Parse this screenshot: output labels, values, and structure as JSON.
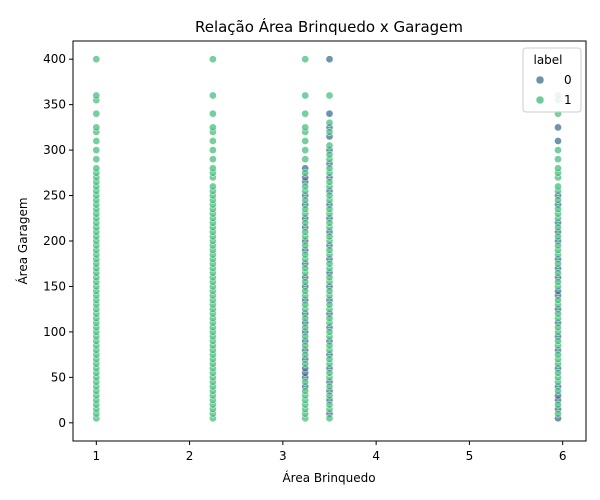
{
  "chart_data": {
    "type": "scatter",
    "title": "Relação Área Brinquedo x Garagem",
    "xlabel": "Área Brinquedo",
    "ylabel": "Área Garagem",
    "xlim": [
      0.75,
      6.25
    ],
    "ylim": [
      -20,
      420
    ],
    "xticks": [
      1,
      2,
      3,
      4,
      5,
      6
    ],
    "yticks": [
      0,
      50,
      100,
      150,
      200,
      250,
      300,
      350,
      400
    ],
    "grid": false,
    "legend": {
      "title": "label",
      "placement": "top-right",
      "entries": [
        {
          "label": "0",
          "color": "#3b6f8a"
        },
        {
          "label": "1",
          "color": "#3dbb78"
        }
      ]
    },
    "series": [
      {
        "name": "0",
        "color": "#33678a",
        "points": [
          [
            3.24,
            40
          ],
          [
            3.24,
            50
          ],
          [
            3.24,
            55
          ],
          [
            3.24,
            60
          ],
          [
            3.24,
            70
          ],
          [
            3.24,
            80
          ],
          [
            3.24,
            90
          ],
          [
            3.24,
            100
          ],
          [
            3.24,
            110
          ],
          [
            3.24,
            120
          ],
          [
            3.24,
            135
          ],
          [
            3.24,
            150
          ],
          [
            3.24,
            160
          ],
          [
            3.24,
            175
          ],
          [
            3.24,
            190
          ],
          [
            3.24,
            200
          ],
          [
            3.24,
            215
          ],
          [
            3.24,
            225
          ],
          [
            3.24,
            240
          ],
          [
            3.24,
            250
          ],
          [
            3.24,
            265
          ],
          [
            3.24,
            270
          ],
          [
            3.24,
            280
          ],
          [
            3.5,
            10
          ],
          [
            3.5,
            25
          ],
          [
            3.5,
            35
          ],
          [
            3.5,
            45
          ],
          [
            3.5,
            60
          ],
          [
            3.5,
            75
          ],
          [
            3.5,
            90
          ],
          [
            3.5,
            105
          ],
          [
            3.5,
            120
          ],
          [
            3.5,
            135
          ],
          [
            3.5,
            150
          ],
          [
            3.5,
            165
          ],
          [
            3.5,
            180
          ],
          [
            3.5,
            195
          ],
          [
            3.5,
            210
          ],
          [
            3.5,
            225
          ],
          [
            3.5,
            240
          ],
          [
            3.5,
            255
          ],
          [
            3.5,
            270
          ],
          [
            3.5,
            285
          ],
          [
            3.5,
            300
          ],
          [
            3.5,
            315
          ],
          [
            3.5,
            325
          ],
          [
            3.5,
            340
          ],
          [
            3.5,
            400
          ],
          [
            5.95,
            5
          ],
          [
            5.95,
            15
          ],
          [
            5.95,
            25
          ],
          [
            5.95,
            30
          ],
          [
            5.95,
            40
          ],
          [
            5.95,
            60
          ],
          [
            5.95,
            80
          ],
          [
            5.95,
            95
          ],
          [
            5.95,
            110
          ],
          [
            5.95,
            125
          ],
          [
            5.95,
            140
          ],
          [
            5.95,
            145
          ],
          [
            5.95,
            160
          ],
          [
            5.95,
            170
          ],
          [
            5.95,
            180
          ],
          [
            5.95,
            200
          ],
          [
            5.95,
            210
          ],
          [
            5.95,
            220
          ],
          [
            5.95,
            240
          ],
          [
            5.95,
            250
          ],
          [
            5.95,
            310
          ],
          [
            5.95,
            325
          ]
        ]
      },
      {
        "name": "1",
        "color": "#3dbb78",
        "points": [
          [
            1,
            5
          ],
          [
            1,
            10
          ],
          [
            1,
            15
          ],
          [
            1,
            20
          ],
          [
            1,
            25
          ],
          [
            1,
            30
          ],
          [
            1,
            35
          ],
          [
            1,
            40
          ],
          [
            1,
            45
          ],
          [
            1,
            50
          ],
          [
            1,
            55
          ],
          [
            1,
            60
          ],
          [
            1,
            65
          ],
          [
            1,
            70
          ],
          [
            1,
            75
          ],
          [
            1,
            80
          ],
          [
            1,
            85
          ],
          [
            1,
            90
          ],
          [
            1,
            95
          ],
          [
            1,
            100
          ],
          [
            1,
            105
          ],
          [
            1,
            110
          ],
          [
            1,
            115
          ],
          [
            1,
            120
          ],
          [
            1,
            125
          ],
          [
            1,
            130
          ],
          [
            1,
            135
          ],
          [
            1,
            140
          ],
          [
            1,
            145
          ],
          [
            1,
            150
          ],
          [
            1,
            155
          ],
          [
            1,
            160
          ],
          [
            1,
            165
          ],
          [
            1,
            170
          ],
          [
            1,
            175
          ],
          [
            1,
            180
          ],
          [
            1,
            185
          ],
          [
            1,
            190
          ],
          [
            1,
            195
          ],
          [
            1,
            200
          ],
          [
            1,
            205
          ],
          [
            1,
            210
          ],
          [
            1,
            215
          ],
          [
            1,
            220
          ],
          [
            1,
            225
          ],
          [
            1,
            230
          ],
          [
            1,
            235
          ],
          [
            1,
            240
          ],
          [
            1,
            245
          ],
          [
            1,
            250
          ],
          [
            1,
            255
          ],
          [
            1,
            260
          ],
          [
            1,
            265
          ],
          [
            1,
            270
          ],
          [
            1,
            275
          ],
          [
            1,
            280
          ],
          [
            1,
            290
          ],
          [
            1,
            300
          ],
          [
            1,
            310
          ],
          [
            1,
            320
          ],
          [
            1,
            325
          ],
          [
            1,
            340
          ],
          [
            1,
            355
          ],
          [
            1,
            360
          ],
          [
            1,
            400
          ],
          [
            2.25,
            5
          ],
          [
            2.25,
            10
          ],
          [
            2.25,
            15
          ],
          [
            2.25,
            20
          ],
          [
            2.25,
            25
          ],
          [
            2.25,
            30
          ],
          [
            2.25,
            35
          ],
          [
            2.25,
            40
          ],
          [
            2.25,
            45
          ],
          [
            2.25,
            50
          ],
          [
            2.25,
            55
          ],
          [
            2.25,
            60
          ],
          [
            2.25,
            65
          ],
          [
            2.25,
            70
          ],
          [
            2.25,
            75
          ],
          [
            2.25,
            80
          ],
          [
            2.25,
            85
          ],
          [
            2.25,
            90
          ],
          [
            2.25,
            95
          ],
          [
            2.25,
            100
          ],
          [
            2.25,
            105
          ],
          [
            2.25,
            110
          ],
          [
            2.25,
            115
          ],
          [
            2.25,
            120
          ],
          [
            2.25,
            125
          ],
          [
            2.25,
            130
          ],
          [
            2.25,
            135
          ],
          [
            2.25,
            140
          ],
          [
            2.25,
            145
          ],
          [
            2.25,
            150
          ],
          [
            2.25,
            155
          ],
          [
            2.25,
            160
          ],
          [
            2.25,
            165
          ],
          [
            2.25,
            170
          ],
          [
            2.25,
            175
          ],
          [
            2.25,
            180
          ],
          [
            2.25,
            185
          ],
          [
            2.25,
            190
          ],
          [
            2.25,
            195
          ],
          [
            2.25,
            200
          ],
          [
            2.25,
            205
          ],
          [
            2.25,
            210
          ],
          [
            2.25,
            215
          ],
          [
            2.25,
            220
          ],
          [
            2.25,
            225
          ],
          [
            2.25,
            230
          ],
          [
            2.25,
            235
          ],
          [
            2.25,
            240
          ],
          [
            2.25,
            245
          ],
          [
            2.25,
            250
          ],
          [
            2.25,
            255
          ],
          [
            2.25,
            260
          ],
          [
            2.25,
            270
          ],
          [
            2.25,
            275
          ],
          [
            2.25,
            280
          ],
          [
            2.25,
            290
          ],
          [
            2.25,
            300
          ],
          [
            2.25,
            310
          ],
          [
            2.25,
            320
          ],
          [
            2.25,
            325
          ],
          [
            2.25,
            340
          ],
          [
            2.25,
            360
          ],
          [
            2.25,
            400
          ],
          [
            3.24,
            5
          ],
          [
            3.24,
            10
          ],
          [
            3.24,
            15
          ],
          [
            3.24,
            20
          ],
          [
            3.24,
            25
          ],
          [
            3.24,
            30
          ],
          [
            3.24,
            35
          ],
          [
            3.24,
            45
          ],
          [
            3.24,
            65
          ],
          [
            3.24,
            75
          ],
          [
            3.24,
            85
          ],
          [
            3.24,
            95
          ],
          [
            3.24,
            105
          ],
          [
            3.24,
            115
          ],
          [
            3.24,
            125
          ],
          [
            3.24,
            130
          ],
          [
            3.24,
            140
          ],
          [
            3.24,
            145
          ],
          [
            3.24,
            155
          ],
          [
            3.24,
            165
          ],
          [
            3.24,
            170
          ],
          [
            3.24,
            180
          ],
          [
            3.24,
            185
          ],
          [
            3.24,
            195
          ],
          [
            3.24,
            205
          ],
          [
            3.24,
            210
          ],
          [
            3.24,
            220
          ],
          [
            3.24,
            230
          ],
          [
            3.24,
            235
          ],
          [
            3.24,
            245
          ],
          [
            3.24,
            255
          ],
          [
            3.24,
            260
          ],
          [
            3.24,
            275
          ],
          [
            3.24,
            290
          ],
          [
            3.24,
            300
          ],
          [
            3.24,
            310
          ],
          [
            3.24,
            320
          ],
          [
            3.24,
            325
          ],
          [
            3.24,
            340
          ],
          [
            3.24,
            360
          ],
          [
            3.24,
            400
          ],
          [
            3.5,
            5
          ],
          [
            3.5,
            15
          ],
          [
            3.5,
            20
          ],
          [
            3.5,
            30
          ],
          [
            3.5,
            40
          ],
          [
            3.5,
            50
          ],
          [
            3.5,
            55
          ],
          [
            3.5,
            65
          ],
          [
            3.5,
            70
          ],
          [
            3.5,
            80
          ],
          [
            3.5,
            85
          ],
          [
            3.5,
            95
          ],
          [
            3.5,
            100
          ],
          [
            3.5,
            110
          ],
          [
            3.5,
            115
          ],
          [
            3.5,
            125
          ],
          [
            3.5,
            130
          ],
          [
            3.5,
            140
          ],
          [
            3.5,
            145
          ],
          [
            3.5,
            155
          ],
          [
            3.5,
            160
          ],
          [
            3.5,
            170
          ],
          [
            3.5,
            175
          ],
          [
            3.5,
            185
          ],
          [
            3.5,
            190
          ],
          [
            3.5,
            200
          ],
          [
            3.5,
            205
          ],
          [
            3.5,
            215
          ],
          [
            3.5,
            220
          ],
          [
            3.5,
            230
          ],
          [
            3.5,
            235
          ],
          [
            3.5,
            245
          ],
          [
            3.5,
            250
          ],
          [
            3.5,
            260
          ],
          [
            3.5,
            265
          ],
          [
            3.5,
            275
          ],
          [
            3.5,
            280
          ],
          [
            3.5,
            290
          ],
          [
            3.5,
            295
          ],
          [
            3.5,
            305
          ],
          [
            3.5,
            320
          ],
          [
            3.5,
            330
          ],
          [
            3.5,
            360
          ],
          [
            5.95,
            10
          ],
          [
            5.95,
            20
          ],
          [
            5.95,
            35
          ],
          [
            5.95,
            45
          ],
          [
            5.95,
            50
          ],
          [
            5.95,
            55
          ],
          [
            5.95,
            65
          ],
          [
            5.95,
            70
          ],
          [
            5.95,
            75
          ],
          [
            5.95,
            85
          ],
          [
            5.95,
            90
          ],
          [
            5.95,
            100
          ],
          [
            5.95,
            105
          ],
          [
            5.95,
            115
          ],
          [
            5.95,
            120
          ],
          [
            5.95,
            130
          ],
          [
            5.95,
            135
          ],
          [
            5.95,
            150
          ],
          [
            5.95,
            155
          ],
          [
            5.95,
            165
          ],
          [
            5.95,
            175
          ],
          [
            5.95,
            185
          ],
          [
            5.95,
            190
          ],
          [
            5.95,
            195
          ],
          [
            5.95,
            205
          ],
          [
            5.95,
            215
          ],
          [
            5.95,
            225
          ],
          [
            5.95,
            230
          ],
          [
            5.95,
            235
          ],
          [
            5.95,
            245
          ],
          [
            5.95,
            255
          ],
          [
            5.95,
            260
          ],
          [
            5.95,
            270
          ],
          [
            5.95,
            275
          ],
          [
            5.95,
            280
          ],
          [
            5.95,
            290
          ],
          [
            5.95,
            300
          ],
          [
            5.95,
            340
          ],
          [
            5.95,
            355
          ],
          [
            5.95,
            360
          ]
        ]
      }
    ]
  }
}
